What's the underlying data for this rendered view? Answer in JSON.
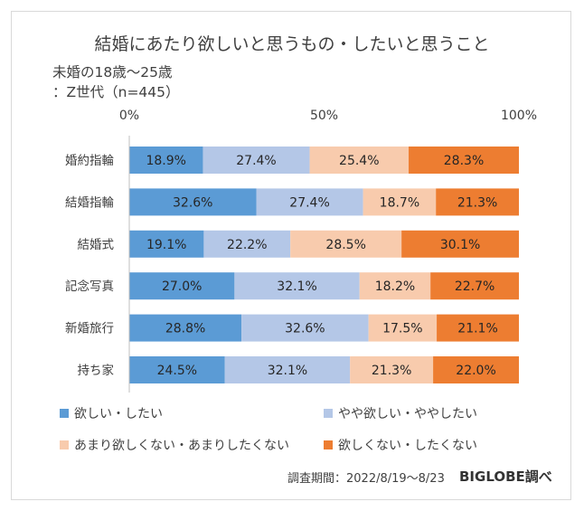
{
  "chart_data": {
    "type": "bar",
    "stacked": "percent",
    "orientation": "horizontal",
    "title": "結婚にあたり欲しいと思うもの・したいと思うこと",
    "subtitle_lines": [
      "未婚の18歳〜25歳",
      "：Z世代（n=445）"
    ],
    "x_ticks": [
      "0%",
      "50%",
      "100%"
    ],
    "xlim": [
      0,
      100
    ],
    "categories": [
      "婚約指輪",
      "結婚指輪",
      "結婚式",
      "記念写真",
      "新婚旅行",
      "持ち家"
    ],
    "series": [
      {
        "name": "欲しい・したい",
        "color": "#5b9bd5",
        "values": [
          18.9,
          32.6,
          19.1,
          27.0,
          28.8,
          24.5
        ],
        "labels": [
          "18.9%",
          "32.6%",
          "19.1%",
          "27.0%",
          "28.8%",
          "24.5%"
        ]
      },
      {
        "name": "やや欲しい・ややしたい",
        "color": "#b4c7e7",
        "values": [
          27.4,
          27.4,
          22.2,
          32.1,
          32.6,
          32.1
        ],
        "labels": [
          "27.4%",
          "27.4%",
          "22.2%",
          "32.1%",
          "32.6%",
          "32.1%"
        ]
      },
      {
        "name": "あまり欲しくない・あまりしたくない",
        "color": "#f8cbad",
        "values": [
          25.4,
          18.7,
          28.5,
          18.2,
          17.5,
          21.3
        ],
        "labels": [
          "25.4%",
          "18.7%",
          "28.5%",
          "18.2%",
          "17.5%",
          "21.3%"
        ]
      },
      {
        "name": "欲しくない・したくない",
        "color": "#ed7d31",
        "values": [
          28.3,
          21.3,
          30.1,
          22.7,
          21.1,
          22.0
        ],
        "labels": [
          "28.3%",
          "21.3%",
          "30.1%",
          "22.7%",
          "21.1%",
          "22.0%"
        ]
      }
    ],
    "legend_position": "bottom",
    "grid": false
  },
  "footer": {
    "survey_period": "調査期間：2022/8/19〜8/23",
    "brand": "BIGLOBE調べ"
  }
}
